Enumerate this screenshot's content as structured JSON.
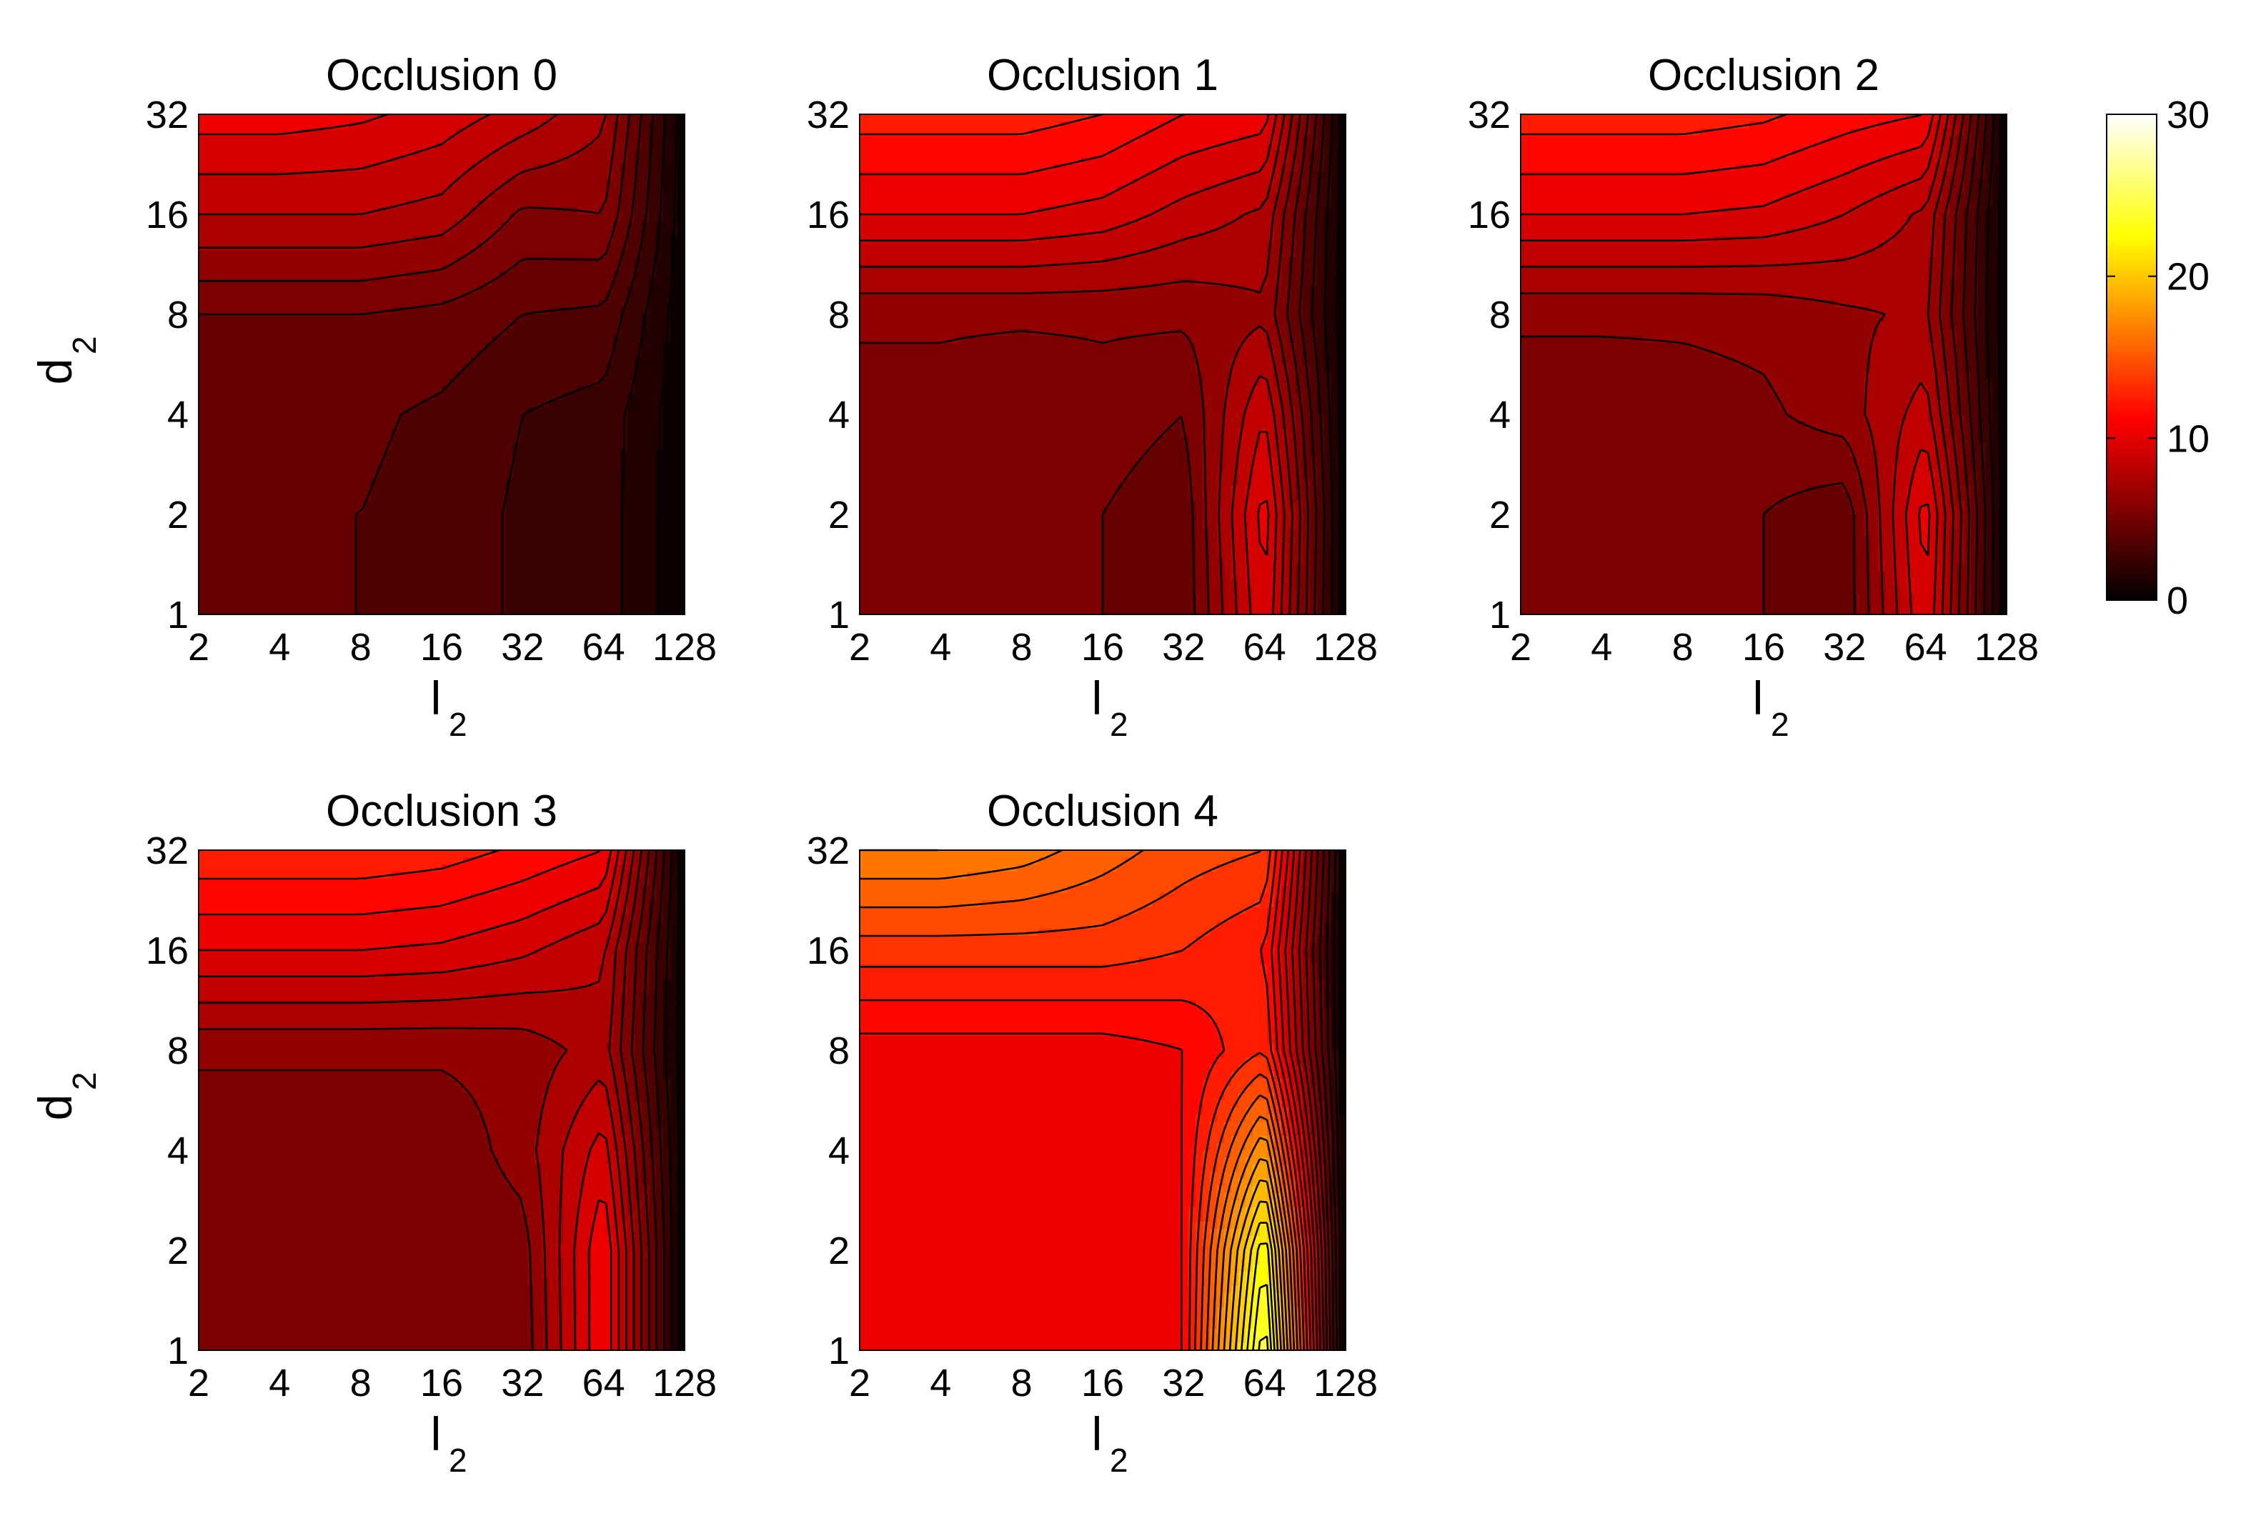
{
  "chart_data": {
    "type": "heatmap",
    "layout": "2x3 grid of filled contour plots with one shared colorbar",
    "colormap": "hot",
    "colorbar": {
      "range": [
        0,
        30
      ],
      "ticks": [
        "0",
        "10",
        "20",
        "30"
      ]
    },
    "x_axis": {
      "label": "l",
      "label_subscript": "2",
      "scale": "log2",
      "ticks": [
        "2",
        "4",
        "8",
        "16",
        "32",
        "64",
        "128"
      ],
      "values": [
        2,
        4,
        8,
        16,
        32,
        64,
        128
      ]
    },
    "y_axis": {
      "label": "d",
      "label_subscript": "2",
      "scale": "log2",
      "ticks": [
        "1",
        "2",
        "4",
        "8",
        "16",
        "32"
      ],
      "values": [
        1,
        2,
        4,
        8,
        16,
        32
      ]
    },
    "panels": [
      {
        "title": "Occlusion 0",
        "show_ylabel": true,
        "z": [
          [
            4.0,
            4.0,
            4.0,
            3.6,
            2.8,
            2.5,
            0.3
          ],
          [
            4.0,
            4.0,
            4.0,
            3.6,
            2.8,
            2.5,
            0.3
          ],
          [
            4.2,
            4.2,
            4.2,
            3.8,
            3.0,
            2.6,
            0.3
          ],
          [
            5.0,
            5.0,
            5.0,
            4.7,
            4.0,
            3.8,
            0.3
          ],
          [
            8.0,
            8.0,
            8.0,
            7.6,
            5.8,
            6.0,
            0.3
          ],
          [
            10.5,
            10.5,
            10.2,
            9.6,
            8.6,
            7.2,
            0.3
          ]
        ]
      },
      {
        "title": "Occlusion 1",
        "show_ylabel": false,
        "z": [
          [
            5.0,
            5.0,
            5.0,
            5.0,
            4.2,
            10.0,
            0.3
          ],
          [
            5.0,
            5.0,
            5.0,
            5.0,
            4.3,
            10.5,
            0.3
          ],
          [
            5.5,
            5.5,
            5.0,
            5.5,
            5.0,
            9.0,
            0.3
          ],
          [
            6.2,
            6.2,
            6.2,
            6.2,
            6.2,
            6.8,
            0.3
          ],
          [
            10.0,
            10.0,
            10.0,
            9.6,
            8.6,
            7.8,
            0.3
          ],
          [
            12.5,
            12.5,
            12.5,
            12.0,
            11.0,
            10.5,
            0.3
          ]
        ]
      },
      {
        "title": "Occlusion 2",
        "show_ylabel": false,
        "z": [
          [
            5.0,
            5.0,
            5.0,
            5.0,
            4.3,
            10.0,
            0.3
          ],
          [
            5.0,
            5.0,
            5.0,
            5.0,
            4.3,
            10.5,
            0.3
          ],
          [
            5.3,
            5.3,
            5.5,
            5.8,
            6.5,
            8.5,
            0.3
          ],
          [
            6.2,
            6.2,
            6.2,
            6.3,
            6.8,
            7.2,
            0.3
          ],
          [
            10.0,
            10.0,
            10.0,
            9.8,
            9.0,
            7.8,
            0.3
          ],
          [
            12.5,
            12.5,
            12.5,
            12.2,
            11.5,
            11.0,
            0.3
          ]
        ]
      },
      {
        "title": "Occlusion 3",
        "show_ylabel": true,
        "z": [
          [
            5.0,
            5.0,
            5.0,
            5.0,
            5.3,
            11.0,
            0.3
          ],
          [
            5.0,
            5.0,
            5.0,
            5.0,
            5.5,
            11.0,
            0.3
          ],
          [
            5.2,
            5.2,
            5.2,
            5.2,
            6.5,
            9.5,
            0.3
          ],
          [
            6.2,
            6.2,
            6.2,
            6.2,
            6.4,
            7.5,
            0.3
          ],
          [
            10.0,
            10.0,
            10.0,
            9.8,
            9.2,
            8.2,
            0.3
          ],
          [
            12.8,
            12.8,
            12.8,
            12.5,
            11.8,
            11.0,
            0.3
          ]
        ]
      },
      {
        "title": "Occlusion 4",
        "show_ylabel": false,
        "z": [
          [
            10.0,
            10.0,
            10.0,
            10.0,
            11.0,
            25.0,
            0.3
          ],
          [
            10.0,
            10.0,
            10.0,
            10.0,
            11.0,
            23.0,
            0.3
          ],
          [
            10.0,
            10.0,
            10.0,
            10.0,
            11.0,
            18.0,
            0.3
          ],
          [
            10.5,
            10.5,
            10.5,
            10.5,
            11.0,
            13.0,
            0.3
          ],
          [
            13.5,
            13.5,
            13.5,
            13.5,
            13.0,
            12.0,
            0.3
          ],
          [
            17.0,
            17.0,
            16.5,
            15.5,
            14.5,
            14.0,
            0.3
          ]
        ]
      }
    ]
  }
}
